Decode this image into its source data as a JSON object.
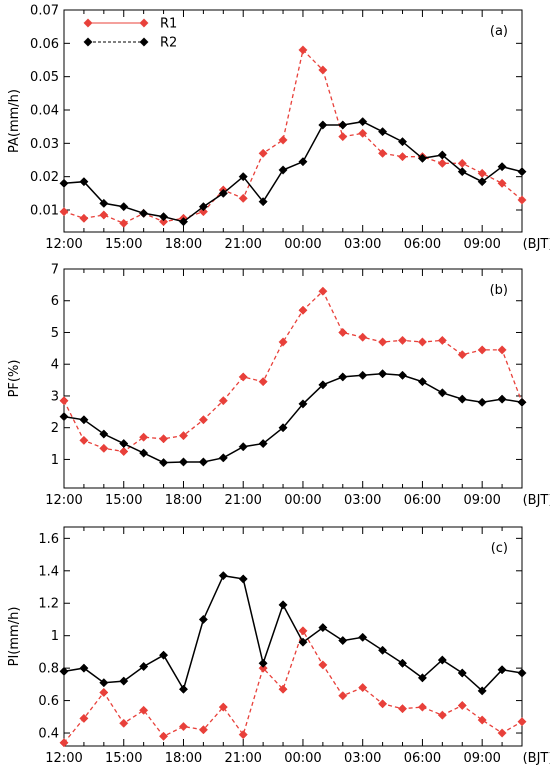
{
  "chart_data": [
    {
      "type": "line",
      "panel_label": "(a)",
      "ylabel": "PA(mm/h)",
      "ylim": [
        0.0034,
        0.07
      ],
      "yticks": [
        "0.01",
        "0.02",
        "0.03",
        "0.04",
        "0.05",
        "0.06",
        "0.07"
      ],
      "xticks": [
        "12:00",
        "15:00",
        "18:00",
        "21:00",
        "00:00",
        "03:00",
        "06:00",
        "09:00"
      ],
      "x_unit_label": "(BJT)",
      "legend": "top-left",
      "series": [
        {
          "name": "R1",
          "color": "#e8403a",
          "style": "dashed",
          "values": [
            0.0095,
            0.0075,
            0.0085,
            0.006,
            0.009,
            0.0065,
            0.0075,
            0.0095,
            0.016,
            0.0135,
            0.027,
            0.031,
            0.058,
            0.052,
            0.032,
            0.033,
            0.027,
            0.026,
            0.026,
            0.024,
            0.024,
            0.021,
            0.018,
            0.013
          ]
        },
        {
          "name": "R2",
          "color": "#000000",
          "style": "solid",
          "values": [
            0.018,
            0.0185,
            0.012,
            0.011,
            0.009,
            0.008,
            0.0065,
            0.011,
            0.015,
            0.02,
            0.0125,
            0.022,
            0.0245,
            0.0355,
            0.0355,
            0.0365,
            0.0335,
            0.0305,
            0.0255,
            0.0265,
            0.0215,
            0.0185,
            0.023,
            0.0215
          ]
        }
      ]
    },
    {
      "type": "line",
      "panel_label": "(b)",
      "ylabel": "PF(%)",
      "ylim": [
        0.1,
        7
      ],
      "yticks": [
        "1",
        "2",
        "3",
        "4",
        "5",
        "6",
        "7"
      ],
      "xticks": [
        "12:00",
        "15:00",
        "18:00",
        "21:00",
        "00:00",
        "03:00",
        "06:00",
        "09:00"
      ],
      "x_unit_label": "(BJT)",
      "series": [
        {
          "name": "R1",
          "color": "#e8403a",
          "style": "dashed",
          "values": [
            2.85,
            1.6,
            1.35,
            1.25,
            1.7,
            1.65,
            1.75,
            2.25,
            2.85,
            3.6,
            3.45,
            4.7,
            5.7,
            6.3,
            5.0,
            4.85,
            4.7,
            4.75,
            4.7,
            4.75,
            4.3,
            4.45,
            4.45,
            2.8
          ]
        },
        {
          "name": "R2",
          "color": "#000000",
          "style": "solid",
          "values": [
            2.35,
            2.25,
            1.8,
            1.5,
            1.2,
            0.9,
            0.92,
            0.92,
            1.05,
            1.4,
            1.5,
            2.0,
            2.75,
            3.35,
            3.6,
            3.65,
            3.7,
            3.65,
            3.45,
            3.1,
            2.9,
            2.8,
            2.9,
            2.8
          ]
        }
      ]
    },
    {
      "type": "line",
      "panel_label": "(c)",
      "ylabel": "PI(mm/h)",
      "ylim": [
        0.32,
        1.67
      ],
      "yticks": [
        "0.4",
        "0.6",
        "0.8",
        "1",
        "1.2",
        "1.4",
        "1.6"
      ],
      "xticks": [
        "12:00",
        "15:00",
        "18:00",
        "21:00",
        "00:00",
        "03:00",
        "06:00",
        "09:00"
      ],
      "x_unit_label": "(BJT)",
      "series": [
        {
          "name": "R1",
          "color": "#e8403a",
          "style": "dashed",
          "values": [
            0.34,
            0.49,
            0.65,
            0.46,
            0.54,
            0.38,
            0.44,
            0.42,
            0.56,
            0.39,
            0.8,
            0.67,
            1.03,
            0.82,
            0.63,
            0.68,
            0.58,
            0.55,
            0.56,
            0.51,
            0.57,
            0.48,
            0.4,
            0.47
          ]
        },
        {
          "name": "R2",
          "color": "#000000",
          "style": "solid",
          "values": [
            0.78,
            0.8,
            0.71,
            0.72,
            0.81,
            0.88,
            0.67,
            1.1,
            1.37,
            1.35,
            0.83,
            1.19,
            0.96,
            1.05,
            0.97,
            0.99,
            0.91,
            0.83,
            0.74,
            0.85,
            0.77,
            0.66,
            0.79,
            0.77
          ]
        }
      ]
    }
  ]
}
